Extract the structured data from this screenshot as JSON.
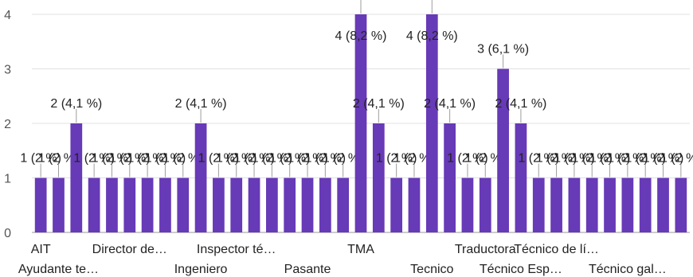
{
  "chart_data": {
    "type": "bar",
    "title": "",
    "xlabel": "",
    "ylabel": "",
    "ylim": [
      0,
      4
    ],
    "yticks": [
      0,
      1,
      2,
      3,
      4
    ],
    "grid": true,
    "bar_color": "#673ab7",
    "categories": [
      "AIT",
      "Ayudante te…",
      "",
      "",
      "",
      "Director de…",
      "",
      "",
      "",
      "Ingeniero",
      "",
      "Inspector té…",
      "",
      "",
      "",
      "Pasante",
      "",
      "",
      "TMA",
      "",
      "",
      "",
      "Tecnico",
      "",
      "",
      "Traductora",
      "",
      "Técnico Esp…",
      "",
      "Técnico de lí…",
      "",
      "",
      "",
      "Técnico gal…",
      "",
      "",
      ""
    ],
    "values": [
      1,
      1,
      2,
      1,
      1,
      1,
      1,
      1,
      1,
      2,
      1,
      1,
      1,
      1,
      1,
      1,
      1,
      1,
      4,
      2,
      1,
      1,
      4,
      2,
      1,
      1,
      3,
      2,
      1,
      1,
      1,
      1,
      1,
      1,
      1,
      1,
      1
    ],
    "data_labels": [
      "1 (2 %)",
      "1 (2 %)",
      "2 (4,1 %)",
      "1 (2 %)",
      "1 (2 %)",
      "1 (2 %)",
      "1 (2 %)",
      "1 (2 %)",
      "1 (2 %)",
      "2 (4,1 %)",
      "1 (2 %)",
      "1 (2 %)",
      "1 (2 %)",
      "1 (2 %)",
      "1 (2 %)",
      "1 (2 %)",
      "1 (2 %)",
      "1 (2 %)",
      "4 (8,2 %)",
      "2 (4,1 %)",
      "1 (2 %)",
      "1 (2 %)",
      "4 (8,2 %)",
      "2 (4,1 %)",
      "1 (2 %)",
      "1 (2 %)",
      "3 (6,1 %)",
      "2 (4,1 %)",
      "1 (2 %)",
      "1 (2 %)",
      "1 (2 %)",
      "1 (2 %)",
      "1 (2 %)",
      "1 (2 %)",
      "1 (2 %)",
      "1 (2 %)",
      "1 (2 %)"
    ]
  }
}
